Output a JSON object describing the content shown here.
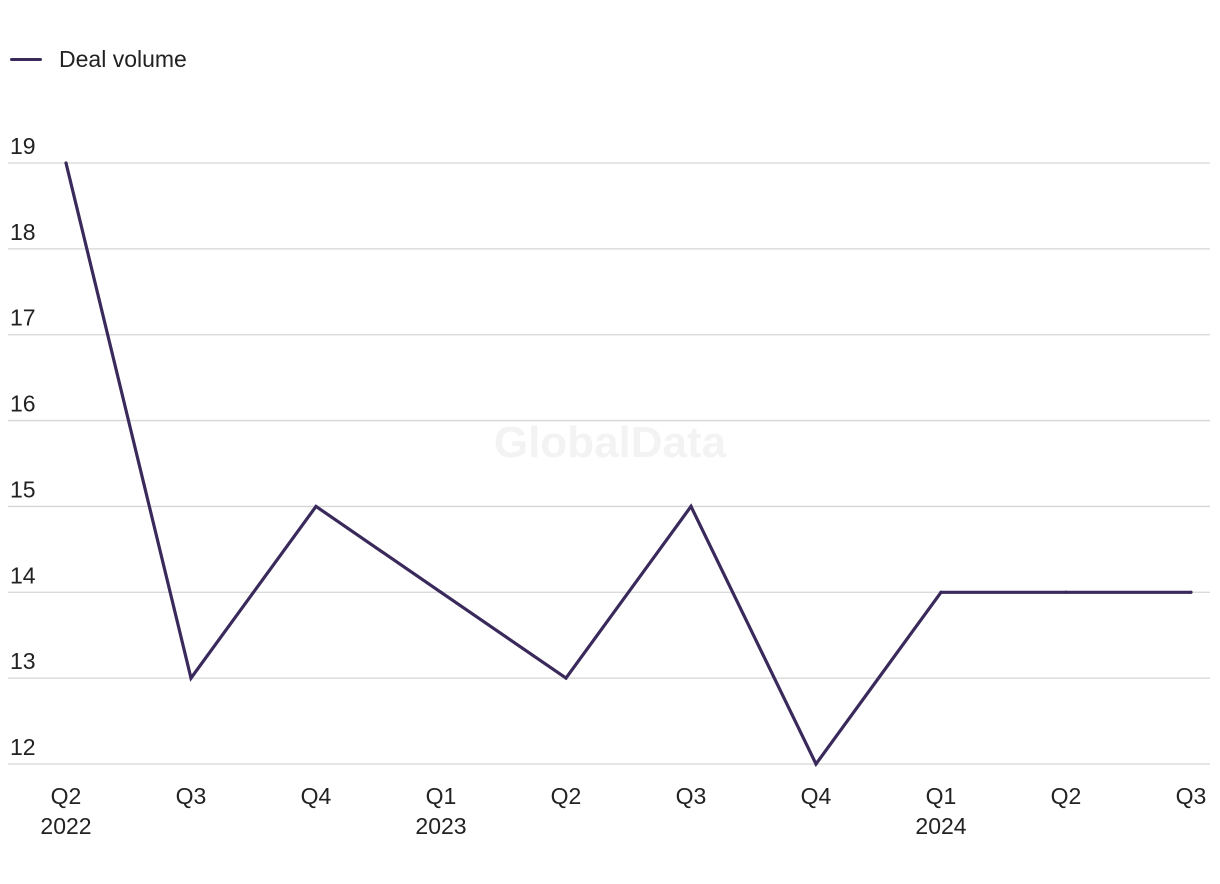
{
  "watermark": "GlobalData",
  "colors": {
    "line": "#3a2a5c",
    "grid": "#d6d6d6",
    "text": "#222222"
  },
  "chart_data": {
    "type": "line",
    "x": [
      "Q2\n2022",
      "Q3",
      "Q4",
      "Q1\n2023",
      "Q2",
      "Q3",
      "Q4",
      "Q1\n2024",
      "Q2",
      "Q3"
    ],
    "series": [
      {
        "name": "Deal volume",
        "values": [
          19,
          13,
          15,
          14,
          13,
          15,
          12,
          14,
          14,
          14
        ]
      }
    ],
    "yticks": [
      12,
      13,
      14,
      15,
      16,
      17,
      18,
      19
    ],
    "ylim": [
      12,
      19
    ],
    "grid": true,
    "legend": "top-left"
  }
}
